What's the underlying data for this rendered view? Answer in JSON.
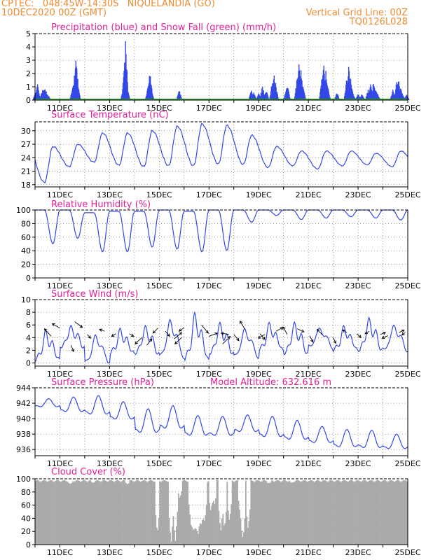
{
  "header": {
    "left_line1": "CPTEC:   048:45W-14:30S   NIQUELANDIA (GO)",
    "left_line2": "10DEC2020 00Z (GMT)",
    "right_line1": "Vertical Grid Line: 00Z",
    "right_line2": "TQ0126L028"
  },
  "colors": {
    "header": "#f08c32",
    "panel_title": "#e0209a",
    "series_line": "#3348e6",
    "snow": "#2fa02f",
    "cloud_fill": "#aaaaaa",
    "wind_arrow": "#000000"
  },
  "chart_data": [
    {
      "type": "bar",
      "title": "Precipitation (blue) and Snow Fall (green) (mm/h)",
      "ylim": [
        0,
        5
      ],
      "yticks": [
        0,
        1,
        2,
        3,
        4,
        5
      ],
      "xticks": [
        "11DEC",
        "13DEC",
        "15DEC",
        "17DEC",
        "19DEC",
        "21DEC",
        "23DEC",
        "25DEC"
      ],
      "grid": true,
      "series": [
        {
          "name": "Precipitation",
          "bursts": [
            [
              10.02,
              0.6
            ],
            [
              10.1,
              1.2
            ],
            [
              10.16,
              0.4
            ],
            [
              10.3,
              0.9
            ],
            [
              10.38,
              1.0
            ],
            [
              10.45,
              0.7
            ],
            [
              10.55,
              0.3
            ],
            [
              11.5,
              0.8
            ],
            [
              11.55,
              1.4
            ],
            [
              11.6,
              2.2
            ],
            [
              11.64,
              3.1
            ],
            [
              11.68,
              2.4
            ],
            [
              11.72,
              1.1
            ],
            [
              13.55,
              0.9
            ],
            [
              13.6,
              2.6
            ],
            [
              13.64,
              4.5
            ],
            [
              13.68,
              1.8
            ],
            [
              13.72,
              0.7
            ],
            [
              14.55,
              1.1
            ],
            [
              14.6,
              2.0
            ],
            [
              14.64,
              1.8
            ],
            [
              14.68,
              0.9
            ],
            [
              15.8,
              0.8
            ],
            [
              18.7,
              0.9
            ],
            [
              18.8,
              0.6
            ],
            [
              19.0,
              0.5
            ],
            [
              19.15,
              1.1
            ],
            [
              19.3,
              0.8
            ],
            [
              19.55,
              1.5
            ],
            [
              19.62,
              1.9
            ],
            [
              19.68,
              1.3
            ],
            [
              20.1,
              0.7
            ],
            [
              20.15,
              1.3
            ],
            [
              20.55,
              1.8
            ],
            [
              20.62,
              2.7
            ],
            [
              20.7,
              2.3
            ],
            [
              20.78,
              1.2
            ],
            [
              21.55,
              1.9
            ],
            [
              21.62,
              2.8
            ],
            [
              21.7,
              2.2
            ],
            [
              21.78,
              1.0
            ],
            [
              22.15,
              0.6
            ],
            [
              22.55,
              1.8
            ],
            [
              22.62,
              2.6
            ],
            [
              22.7,
              1.6
            ],
            [
              22.78,
              0.7
            ],
            [
              23.0,
              0.5
            ],
            [
              23.15,
              0.5
            ],
            [
              23.4,
              0.8
            ],
            [
              23.5,
              1.2
            ],
            [
              23.62,
              1.4
            ],
            [
              23.7,
              1.0
            ],
            [
              23.78,
              0.5
            ],
            [
              24.4,
              0.8
            ],
            [
              24.55,
              1.4
            ],
            [
              24.62,
              1.7
            ],
            [
              24.7,
              1.1
            ],
            [
              24.78,
              0.5
            ],
            [
              24.95,
              0.4
            ]
          ]
        },
        {
          "name": "Snow Fall",
          "values": 0
        }
      ]
    },
    {
      "type": "line",
      "title": "Surface Temperature (nC)",
      "ylim": [
        17.5,
        32
      ],
      "yticks": [
        18,
        21,
        24,
        27,
        30
      ],
      "grid": true,
      "series": [
        {
          "name": "Temperature",
          "daily_min": [
            18.5,
            22.0,
            23.0,
            22.3,
            22.0,
            22.2,
            22.2,
            22.6,
            22.5,
            21.8,
            22.2,
            21.5,
            22.2,
            22.4,
            22.0
          ],
          "daily_max": [
            26.5,
            27.0,
            29.5,
            29.5,
            30.0,
            31.0,
            31.5,
            31.2,
            29.0,
            26.5,
            25.5,
            25.5,
            25.5,
            25.0,
            25.5
          ]
        }
      ]
    },
    {
      "type": "line",
      "title": "Relative Humidity (%)",
      "ylim": [
        0,
        100
      ],
      "yticks": [
        0,
        20,
        40,
        60,
        80,
        100
      ],
      "grid": true,
      "series": [
        {
          "name": "Relative Humidity",
          "daily_min": [
            50,
            58,
            38,
            38,
            45,
            42,
            38,
            40,
            82,
            92,
            86,
            88,
            90,
            88,
            85
          ],
          "daily_max": [
            100,
            100,
            96,
            98,
            98,
            100,
            98,
            100,
            100,
            100,
            100,
            100,
            100,
            100,
            100
          ]
        }
      ]
    },
    {
      "type": "line",
      "title": "Surface Wind (m/s)",
      "ylim": [
        -0.5,
        10
      ],
      "yticks": [
        0,
        2,
        4,
        6,
        8,
        10
      ],
      "grid": true,
      "series": [
        {
          "name": "Wind Speed",
          "peaks": [
            5.2,
            6.0,
            5.0,
            5.5,
            6.0,
            7.5,
            8.2,
            6.5,
            6.0,
            6.5,
            6.5,
            6.0,
            6.0,
            7.2,
            6.5
          ],
          "lows": [
            0.5,
            2.5,
            0.0,
            1.5,
            1.5,
            1.0,
            0.5,
            1.5,
            1.0,
            2.0,
            1.5,
            2.5,
            2.0,
            2.0,
            2.0
          ]
        }
      ],
      "arrows": [
        [
          10.65,
          4.2,
          -0.8,
          1.2
        ],
        [
          11.0,
          5.5,
          -0.9,
          0.7
        ],
        [
          11.45,
          2.8,
          0.3,
          -1.0
        ],
        [
          11.6,
          6.5,
          0.9,
          -0.9
        ],
        [
          12.1,
          4.5,
          0.4,
          -0.6
        ],
        [
          12.8,
          5.0,
          -0.6,
          0.3
        ],
        [
          13.25,
          4.6,
          -0.5,
          -0.4
        ],
        [
          13.8,
          4.6,
          0.5,
          -0.4
        ],
        [
          14.3,
          4.0,
          -0.8,
          -1.0
        ],
        [
          14.5,
          2.8,
          0.6,
          1.0
        ],
        [
          14.95,
          5.5,
          -0.6,
          -0.8
        ],
        [
          15.25,
          5.0,
          0.5,
          -0.8
        ],
        [
          15.6,
          3.8,
          0.9,
          1.0
        ],
        [
          15.9,
          4.0,
          -0.8,
          -1.0
        ],
        [
          16.0,
          5.6,
          -0.6,
          -0.6
        ],
        [
          16.7,
          6.0,
          0.8,
          -1.3
        ],
        [
          17.0,
          4.2,
          1.0,
          0.5
        ],
        [
          17.55,
          3.0,
          0.9,
          1.2
        ],
        [
          17.8,
          4.5,
          -0.9,
          0.2
        ],
        [
          18.0,
          4.5,
          0.6,
          -1.0
        ],
        [
          18.45,
          5.3,
          -0.6,
          1.3
        ],
        [
          19.05,
          4.6,
          0.6,
          -0.9
        ],
        [
          19.25,
          4.5,
          -0.8,
          -0.6
        ],
        [
          19.7,
          5.0,
          0.8,
          0.6
        ],
        [
          20.15,
          4.5,
          -0.5,
          1.2
        ],
        [
          20.55,
          5.4,
          0.8,
          -0.5
        ],
        [
          21.05,
          4.3,
          0.4,
          -1.0
        ],
        [
          21.55,
          4.5,
          -0.6,
          0.8
        ],
        [
          22.0,
          4.0,
          0.3,
          -0.9
        ],
        [
          22.55,
          4.8,
          -0.5,
          0.4
        ],
        [
          22.95,
          4.6,
          0.5,
          -0.6
        ],
        [
          23.45,
          5.0,
          -0.5,
          -0.4
        ],
        [
          23.9,
          4.5,
          0.6,
          0.3
        ],
        [
          24.2,
          4.3,
          -0.7,
          -0.4
        ],
        [
          24.65,
          4.8,
          0.6,
          0.4
        ],
        [
          24.9,
          4.8,
          -0.4,
          -0.4
        ]
      ]
    },
    {
      "type": "line",
      "title": "Surface Pressure (hPa)",
      "annotation": "Model Altitude: 632.616 m",
      "ylim": [
        935.2,
        944
      ],
      "yticks": [
        936,
        938,
        940,
        942,
        944
      ],
      "grid": true,
      "series": [
        {
          "name": "Pressure",
          "daily_max": [
            942.6,
            942.8,
            943.0,
            942.2,
            941.3,
            941.7,
            940.4,
            940.3,
            940.5,
            940.3,
            939.8,
            939.0,
            938.6,
            938.5,
            938.0
          ],
          "daily_min": [
            941.2,
            940.3,
            939.8,
            939.2,
            937.2,
            937.8,
            937.0,
            937.0,
            937.6,
            936.8,
            936.5,
            936.2,
            935.6,
            935.5,
            935.5
          ]
        }
      ]
    },
    {
      "type": "area",
      "title": "Cloud Cover (%)",
      "ylim": [
        0,
        100
      ],
      "yticks": [
        0,
        20,
        40,
        60,
        80,
        100
      ],
      "grid": true,
      "series": [
        {
          "name": "Cloud Cover",
          "baseline": 98,
          "dips": [
            [
              14.9,
              14.0
            ],
            [
              15.45,
              0.0
            ],
            [
              15.62,
              3.0
            ],
            [
              15.8,
              70.0
            ],
            [
              16.25,
              30.0
            ],
            [
              16.35,
              18.0
            ],
            [
              16.45,
              20.0
            ],
            [
              16.55,
              12.0
            ],
            [
              16.68,
              26.0
            ],
            [
              16.8,
              33.0
            ],
            [
              17.05,
              50.0
            ],
            [
              17.2,
              60.0
            ],
            [
              17.45,
              18.0
            ],
            [
              17.6,
              22.0
            ],
            [
              17.8,
              35.0
            ],
            [
              18.25,
              40.0
            ],
            [
              18.35,
              6.0
            ],
            [
              18.55,
              22.0
            ],
            [
              11.4,
              92.0
            ],
            [
              12.3,
              94.0
            ],
            [
              13.7,
              92.0
            ],
            [
              19.4,
              93.0
            ],
            [
              20.3,
              94.0
            ]
          ]
        }
      ]
    }
  ]
}
